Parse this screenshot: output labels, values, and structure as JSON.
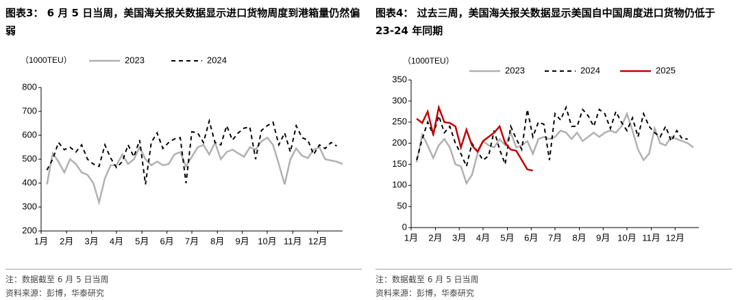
{
  "chart_data": [
    {
      "type": "line",
      "title": "图表3：  6 月 5 日当周，美国海关报关数据显示进口货物周度到港箱量仍然偏弱",
      "unit_label": "（1000TEU）",
      "x": [
        1,
        2,
        3,
        4,
        5,
        6,
        7,
        8,
        9,
        10,
        11,
        12,
        13,
        14,
        15,
        16,
        17,
        18,
        19,
        20,
        21,
        22,
        23,
        24,
        25,
        26,
        27,
        28,
        29,
        30,
        31,
        32,
        33,
        34,
        35,
        36,
        37,
        38,
        39,
        40,
        41,
        42,
        43,
        44,
        45,
        46,
        47,
        48,
        49,
        50,
        51,
        52
      ],
      "xlim": [
        0,
        52
      ],
      "xticks": [
        {
          "value": 0,
          "label": "1月"
        },
        {
          "value": 4.4,
          "label": "2月"
        },
        {
          "value": 8.7,
          "label": "3月"
        },
        {
          "value": 13,
          "label": "4月"
        },
        {
          "value": 17.4,
          "label": "5月"
        },
        {
          "value": 21.7,
          "label": "6月"
        },
        {
          "value": 26,
          "label": "7月"
        },
        {
          "value": 30.4,
          "label": "8月"
        },
        {
          "value": 34.7,
          "label": "9月"
        },
        {
          "value": 39,
          "label": "10月"
        },
        {
          "value": 43.4,
          "label": "11月"
        },
        {
          "value": 47.7,
          "label": "12月"
        }
      ],
      "ylim": [
        200,
        800
      ],
      "yticks": [
        200,
        300,
        400,
        500,
        600,
        700,
        800
      ],
      "series": [
        {
          "name": "2023",
          "color": "#b0b0b0",
          "style": "solid",
          "values": [
            395,
            525,
            490,
            445,
            500,
            480,
            445,
            435,
            400,
            320,
            420,
            475,
            475,
            520,
            480,
            500,
            550,
            500,
            475,
            490,
            475,
            480,
            520,
            530,
            470,
            510,
            550,
            560,
            520,
            570,
            500,
            530,
            540,
            525,
            510,
            550,
            540,
            575,
            590,
            560,
            480,
            395,
            500,
            545,
            515,
            505,
            540,
            550,
            500,
            495,
            490,
            480
          ]
        },
        {
          "name": "2024",
          "color": "#000000",
          "style": "dashed",
          "values": [
            455,
            500,
            570,
            540,
            550,
            530,
            560,
            500,
            480,
            470,
            560,
            505,
            465,
            490,
            560,
            510,
            580,
            395,
            570,
            610,
            545,
            570,
            585,
            590,
            400,
            615,
            610,
            570,
            660,
            570,
            560,
            640,
            580,
            610,
            630,
            635,
            500,
            620,
            640,
            655,
            560,
            610,
            530,
            640,
            590,
            580,
            520,
            560,
            545,
            570,
            555,
            null
          ]
        }
      ],
      "note": "注：数据截至 6 月 5 日当周",
      "source": "资料来源：彭博，华泰研究"
    },
    {
      "type": "line",
      "title": "图表4：  过去三周，美国海关报关数据显示美国自中国周度进口货物仍低于 23-24 年同期",
      "unit_label": "（1000TEU）",
      "x": [
        1,
        2,
        3,
        4,
        5,
        6,
        7,
        8,
        9,
        10,
        11,
        12,
        13,
        14,
        15,
        16,
        17,
        18,
        19,
        20,
        21,
        22,
        23,
        24,
        25,
        26,
        27,
        28,
        29,
        30,
        31,
        32,
        33,
        34,
        35,
        36,
        37,
        38,
        39,
        40,
        41,
        42,
        43,
        44,
        45,
        46,
        47,
        48,
        49,
        50,
        51,
        52
      ],
      "xlim": [
        0,
        52
      ],
      "xticks": [
        {
          "value": 0,
          "label": "1月"
        },
        {
          "value": 4.4,
          "label": "2月"
        },
        {
          "value": 8.7,
          "label": "3月"
        },
        {
          "value": 13,
          "label": "4月"
        },
        {
          "value": 17.4,
          "label": "5月"
        },
        {
          "value": 21.7,
          "label": "6月"
        },
        {
          "value": 26,
          "label": "7月"
        },
        {
          "value": 30.4,
          "label": "8月"
        },
        {
          "value": 34.7,
          "label": "9月"
        },
        {
          "value": 39,
          "label": "10月"
        },
        {
          "value": 43.4,
          "label": "11月"
        },
        {
          "value": 47.7,
          "label": "12月"
        }
      ],
      "ylim": [
        0,
        350
      ],
      "yticks": [
        0,
        50,
        100,
        150,
        200,
        250,
        300,
        350
      ],
      "series": [
        {
          "name": "2023",
          "color": "#b0b0b0",
          "style": "solid",
          "values": [
            155,
            220,
            195,
            165,
            195,
            210,
            190,
            150,
            145,
            105,
            125,
            175,
            205,
            195,
            190,
            210,
            195,
            225,
            190,
            195,
            205,
            175,
            210,
            215,
            210,
            215,
            230,
            225,
            210,
            225,
            205,
            215,
            225,
            215,
            225,
            230,
            225,
            240,
            270,
            230,
            185,
            160,
            175,
            235,
            200,
            195,
            215,
            210,
            205,
            200,
            190,
            null
          ]
        },
        {
          "name": "2024",
          "color": "#000000",
          "style": "dashed",
          "values": [
            160,
            210,
            250,
            220,
            265,
            225,
            240,
            200,
            175,
            145,
            200,
            180,
            160,
            170,
            230,
            185,
            150,
            240,
            210,
            185,
            280,
            215,
            250,
            245,
            160,
            270,
            255,
            285,
            240,
            240,
            280,
            265,
            240,
            280,
            270,
            235,
            275,
            250,
            230,
            260,
            215,
            270,
            240,
            225,
            215,
            240,
            205,
            230,
            210,
            210,
            null,
            null
          ]
        },
        {
          "name": "2025",
          "color": "#c00000",
          "style": "solid",
          "values": [
            258,
            248,
            275,
            220,
            285,
            250,
            248,
            240,
            190,
            232,
            195,
            180,
            205,
            215,
            225,
            240,
            200,
            185,
            182,
            160,
            138,
            135,
            null,
            null,
            null,
            null,
            null,
            null,
            null,
            null,
            null,
            null,
            null,
            null,
            null,
            null,
            null,
            null,
            null,
            null,
            null,
            null,
            null,
            null,
            null,
            null,
            null,
            null,
            null,
            null,
            null,
            null
          ]
        }
      ],
      "note": "注：数据截至 6 月 5 日当周",
      "source": "资料来源：彭博，华泰研究"
    }
  ]
}
